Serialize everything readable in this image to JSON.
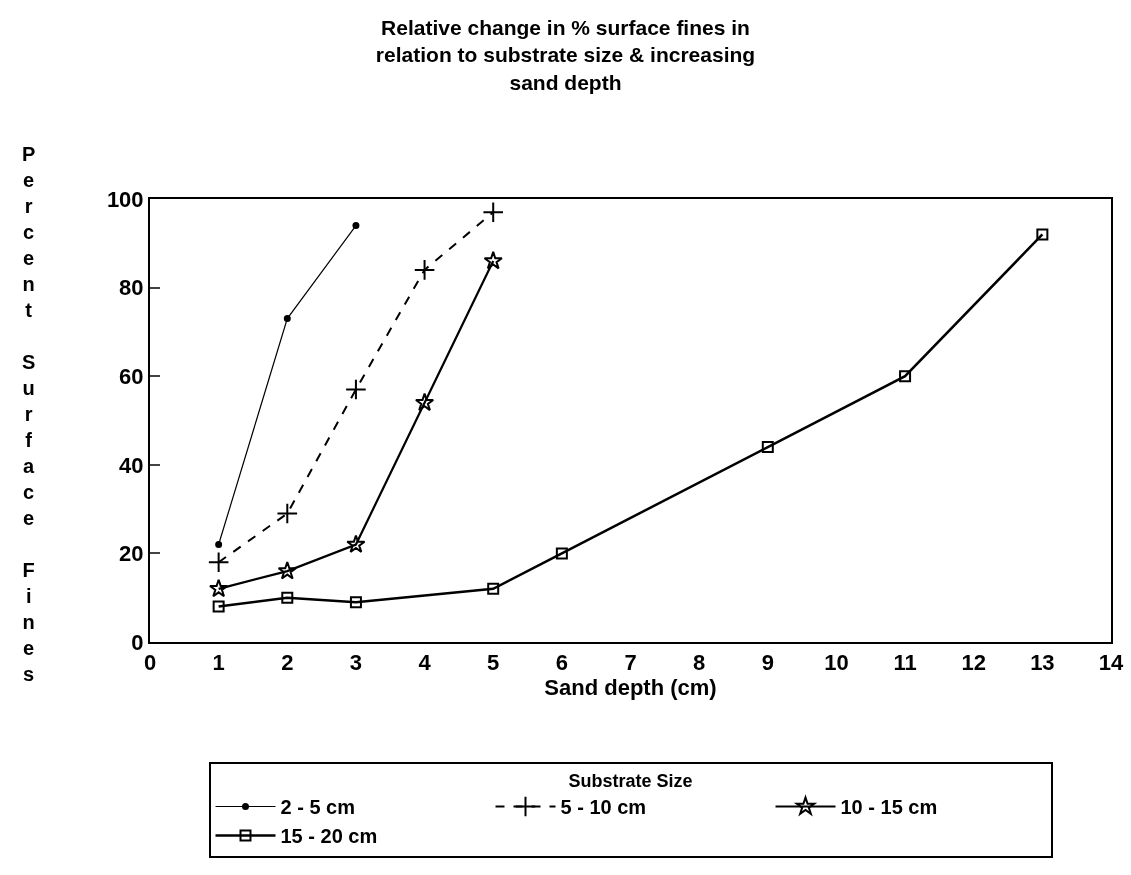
{
  "chart_data": {
    "type": "line",
    "title": "Relative change in % surface fines in relation to substrate size & increasing sand depth",
    "xlabel": "Sand depth (cm)",
    "ylabel": "Percent Surface Fines",
    "legend_title": "Substrate Size",
    "legend": "bottom",
    "grid": false,
    "xlim": [
      0,
      14
    ],
    "xticks": [
      0,
      1,
      2,
      3,
      4,
      5,
      6,
      7,
      8,
      9,
      10,
      11,
      12,
      13,
      14
    ],
    "ylim": [
      0,
      100
    ],
    "yticks": [
      0,
      20,
      40,
      60,
      80,
      100
    ],
    "series": [
      {
        "name": "2 - 5 cm",
        "color": "#000000",
        "marker": "circle",
        "line_style": "solid",
        "x": [
          1,
          2,
          3
        ],
        "values": [
          22,
          73,
          94
        ]
      },
      {
        "name": "5 - 10 cm",
        "color": "#000000",
        "marker": "cross",
        "line_style": "dashed",
        "x": [
          1,
          2,
          3,
          4,
          5
        ],
        "values": [
          18,
          29,
          57,
          84,
          97
        ]
      },
      {
        "name": "10 - 15 cm",
        "color": "#000000",
        "marker": "star",
        "line_style": "solid",
        "x": [
          1,
          2,
          3,
          4,
          5
        ],
        "values": [
          12,
          16,
          22,
          54,
          86
        ]
      },
      {
        "name": "15 - 20 cm",
        "color": "#000000",
        "marker": "square",
        "line_style": "solid",
        "x": [
          1,
          2,
          3,
          5,
          6,
          9,
          11,
          13
        ],
        "values": [
          8,
          10,
          9,
          12,
          20,
          44,
          60,
          92
        ]
      }
    ]
  }
}
